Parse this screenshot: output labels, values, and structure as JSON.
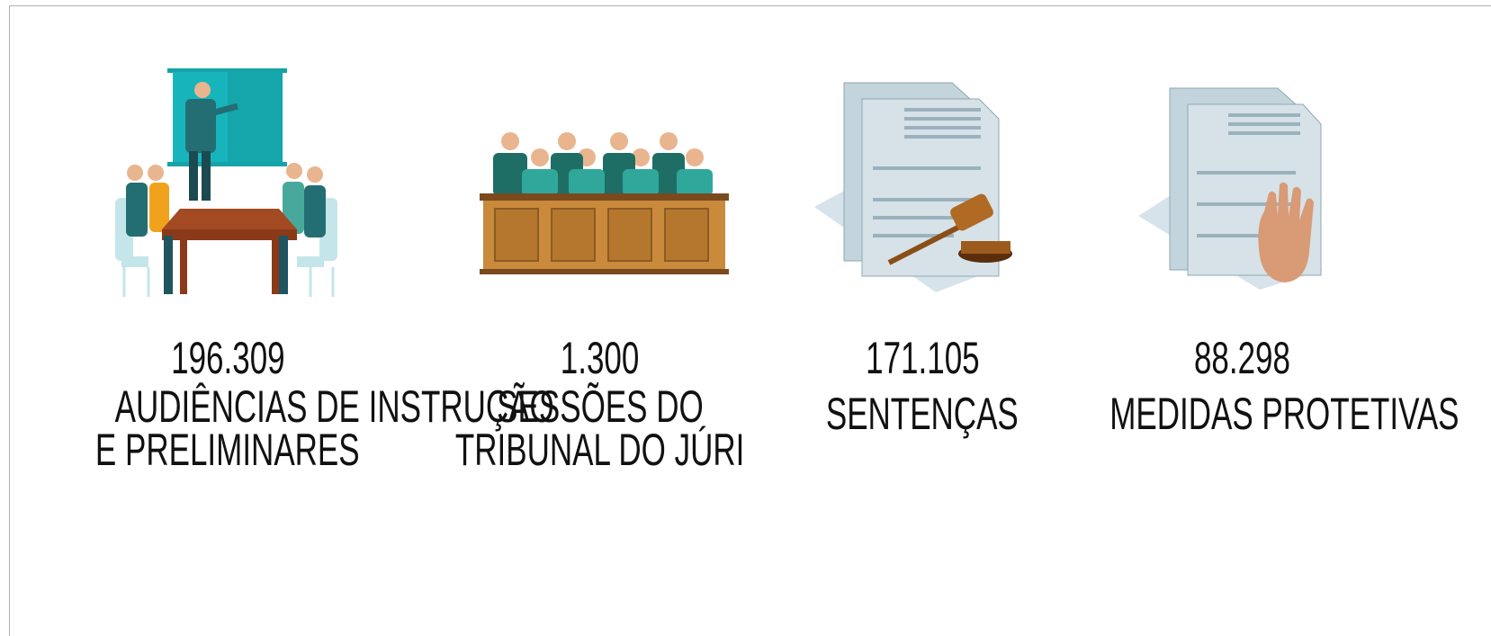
{
  "items": [
    {
      "value": "196.309",
      "label": [
        "AUDIÊNCIAS DE INSTRUÇÃO",
        "E PRELIMINARES"
      ]
    },
    {
      "value": "1.300",
      "label": [
        "SESSÕES DO",
        "TRIBUNAL DO JÚRI"
      ]
    },
    {
      "value": "171.105",
      "label": [
        "SENTENÇAS"
      ]
    },
    {
      "value": "88.298",
      "label": [
        "MEDIDAS PROTETIVAS"
      ]
    }
  ]
}
